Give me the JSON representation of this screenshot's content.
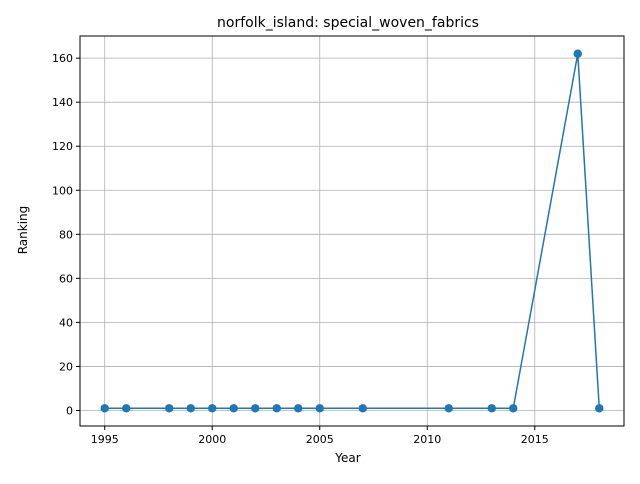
{
  "chart_data": {
    "type": "line",
    "title": "norfolk_island: special_woven_fabrics",
    "xlabel": "Year",
    "ylabel": "Ranking",
    "xlim": [
      1993.85,
      2019.15
    ],
    "ylim": [
      -7.05,
      170.05
    ],
    "x_ticks": [
      1995,
      2000,
      2005,
      2010,
      2015
    ],
    "y_ticks": [
      0,
      20,
      40,
      60,
      80,
      100,
      120,
      140,
      160
    ],
    "grid": true,
    "legend": "none",
    "series": [
      {
        "x": [
          1995,
          1996,
          1998,
          1999,
          2000,
          2001,
          2002,
          2003,
          2004,
          2005,
          2007,
          2011,
          2013,
          2014,
          2017,
          2018
        ],
        "values": [
          1,
          1,
          1,
          1,
          1,
          1,
          1,
          1,
          1,
          1,
          1,
          1,
          1,
          1,
          162,
          1
        ],
        "color": "#1f77b4",
        "marker": "circle"
      }
    ]
  }
}
